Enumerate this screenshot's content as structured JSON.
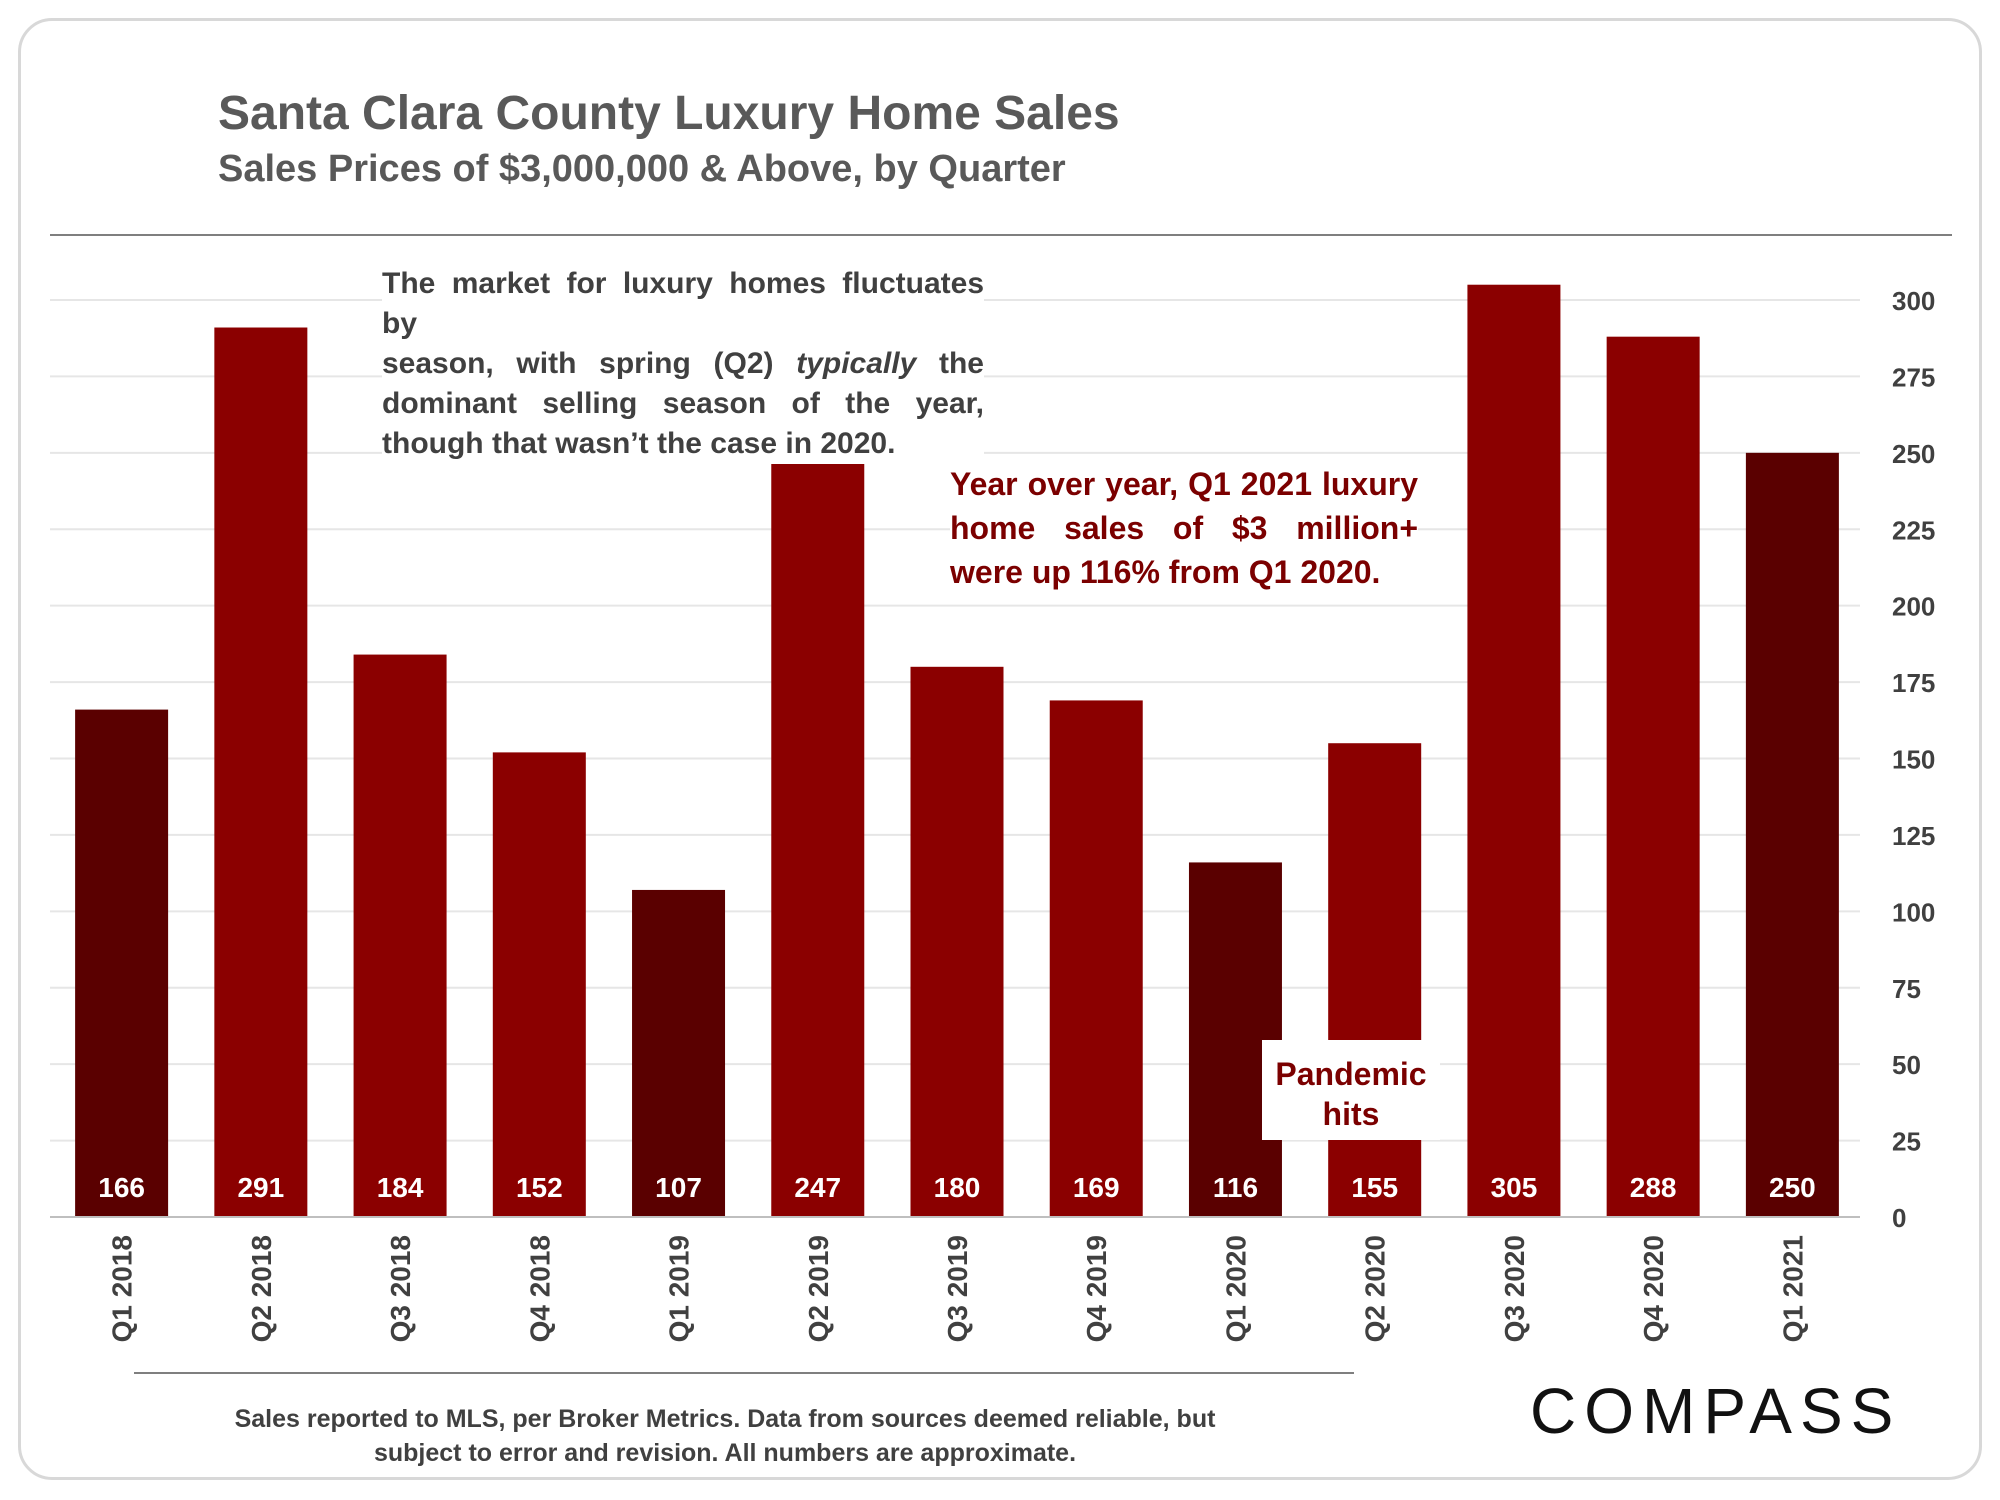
{
  "header": {
    "title": "Santa Clara County Luxury Home Sales",
    "subtitle": "Sales Prices of $3,000,000 & Above, by Quarter"
  },
  "annotations": {
    "season_note_parts": [
      "The market for luxury homes fluctuates by season, with spring (Q2) ",
      "typically",
      " the dominant selling season of the year, though that wasn’t the case in 2020."
    ],
    "season_note_lines": [
      [
        "The market for luxury homes fluctuates by"
      ],
      [
        "season, with spring (Q2) ",
        "typically",
        " the"
      ],
      [
        "dominant selling season of the year,"
      ],
      [
        "though that wasn’t the case in 2020."
      ]
    ],
    "yoy_note_lines": [
      "Year over year, Q1 2021 luxury",
      "home sales of $3 million+",
      "were up 116% from Q1 2020."
    ],
    "pandemic_label_lines": [
      "Pandemic",
      "hits"
    ]
  },
  "footnote": {
    "line1": "Sales reported to MLS, per Broker Metrics. Data from sources deemed reliable, but",
    "line2": "subject to error and revision. All numbers are approximate."
  },
  "logo": {
    "text": "COMPASS"
  },
  "colors": {
    "q1_bar": "#5a0000",
    "other_bar": "#8b0000",
    "text_gray": "#595959",
    "accent_red": "#7b0000",
    "gridline": "#e6e6e6",
    "axis": "#bfbfbf"
  },
  "chart_data": {
    "type": "bar",
    "categories": [
      "Q1 2018",
      "Q2 2018",
      "Q3 2018",
      "Q4 2018",
      "Q1 2019",
      "Q2 2019",
      "Q3 2019",
      "Q4 2019",
      "Q1 2020",
      "Q2 2020",
      "Q3 2020",
      "Q4 2020",
      "Q1 2021"
    ],
    "values": [
      166,
      291,
      184,
      152,
      107,
      247,
      180,
      169,
      116,
      155,
      305,
      288,
      250
    ],
    "data_labels": [
      "166",
      "291",
      "184",
      "152",
      "107",
      "247",
      "180",
      "169",
      "116",
      "155",
      "305",
      "288",
      "250"
    ],
    "title": "Santa Clara County Luxury Home Sales",
    "subtitle": "Sales Prices of $3,000,000 & Above, by Quarter",
    "xlabel": "",
    "ylabel": "",
    "ylim": [
      0,
      300
    ],
    "yticks": [
      0,
      25,
      50,
      75,
      100,
      125,
      150,
      175,
      200,
      225,
      250,
      275,
      300
    ],
    "y_axis_side": "right",
    "grid": true,
    "legend": "none",
    "highlight_rule": "Q1 quarters drawn in darker red"
  }
}
